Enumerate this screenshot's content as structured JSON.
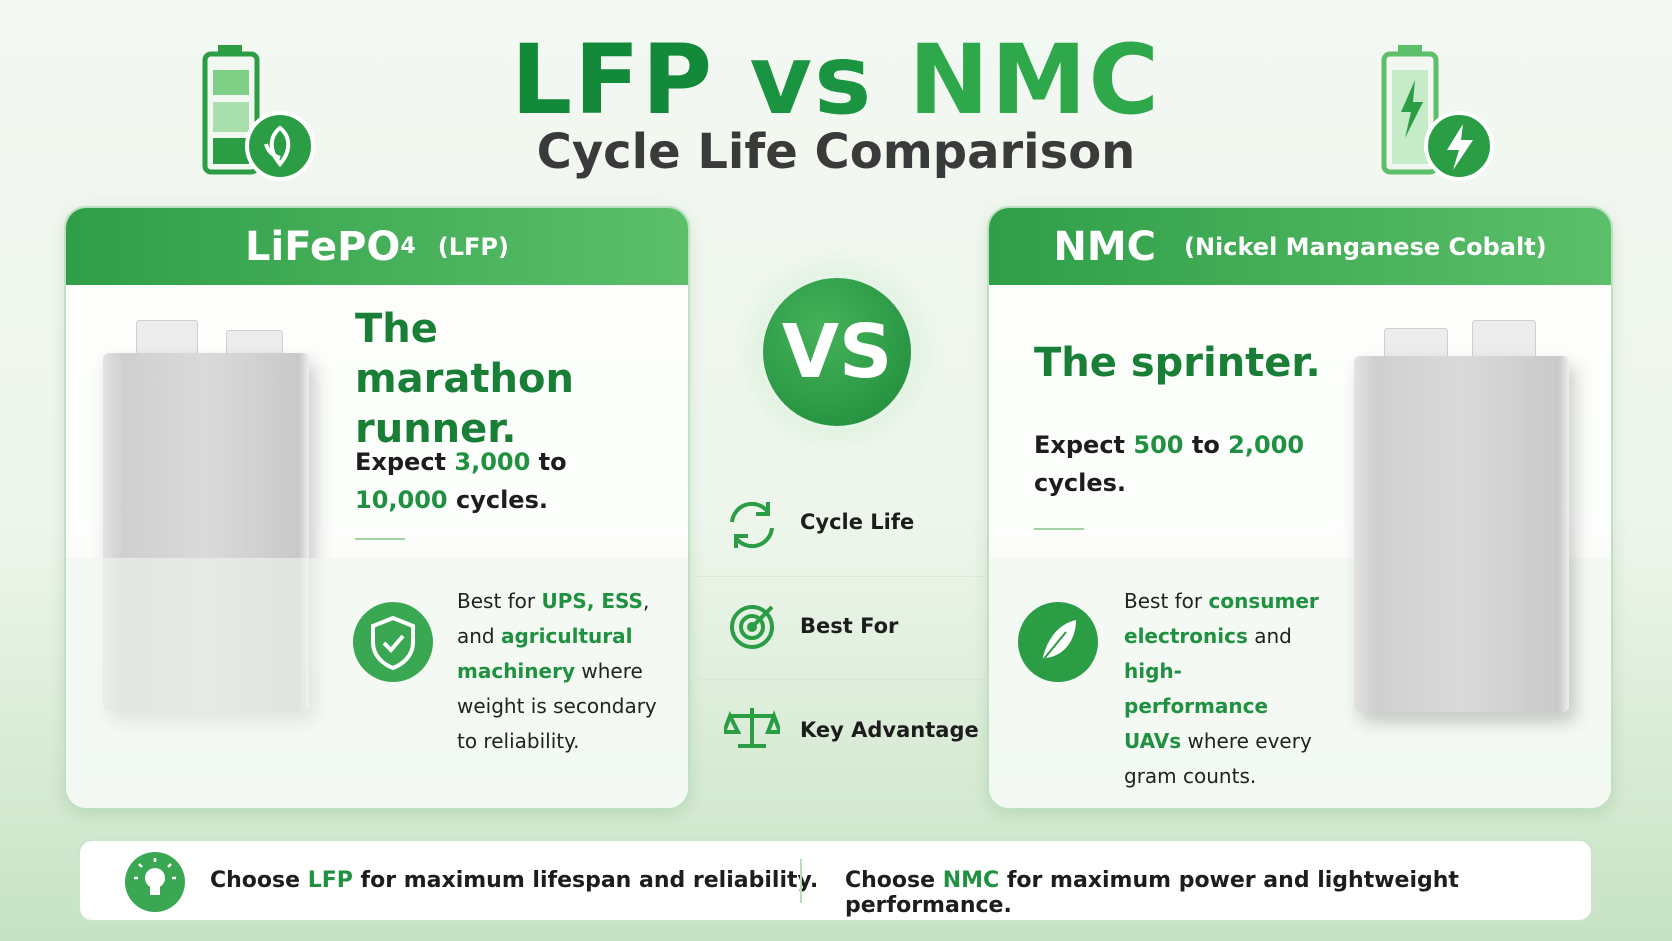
{
  "header": {
    "title_a": "LFP",
    "title_vs": "vs",
    "title_b": "NMC",
    "subtitle": "Cycle Life Comparison"
  },
  "lfp": {
    "name": "LiFePO",
    "subscript": "4",
    "abbr": "(LFP)",
    "tagline": "The marathon runner.",
    "cycles": [
      "Expect ",
      "3,000",
      " to ",
      "10,000",
      " cycles."
    ],
    "best_for": [
      "Best for ",
      "UPS, ESS",
      ", and ",
      "agricultural machinery",
      " where weight is secondary to reliability."
    ]
  },
  "center": {
    "vs": "VS",
    "items": [
      "Cycle Life",
      "Best For",
      "Key Advantage"
    ]
  },
  "nmc": {
    "name": "NMC",
    "abbr": "(Nickel Manganese Cobalt)",
    "tagline": "The sprinter.",
    "cycles": [
      "Expect ",
      "500",
      " to ",
      "2,000",
      " cycles."
    ],
    "best_for": [
      "Best for ",
      "consumer electronics",
      " and ",
      "high-performance UAVs",
      " where every gram counts."
    ]
  },
  "footer": {
    "lfp": [
      "Choose ",
      "LFP",
      " for maximum lifespan and reliability."
    ],
    "nmc": [
      "Choose ",
      "NMC",
      " for maximum power and lightweight performance."
    ]
  }
}
